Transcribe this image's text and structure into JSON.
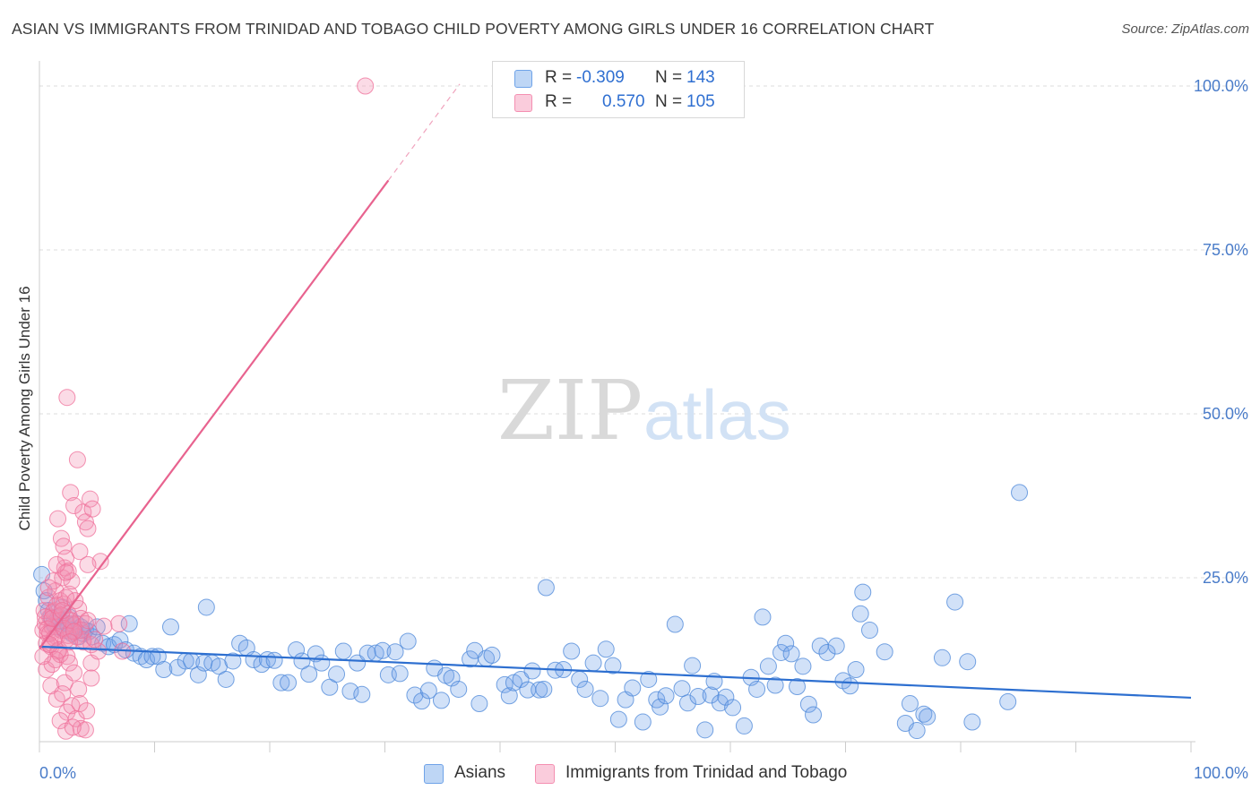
{
  "title": "ASIAN VS IMMIGRANTS FROM TRINIDAD AND TOBAGO CHILD POVERTY AMONG GIRLS UNDER 16 CORRELATION CHART",
  "source": "Source: ZipAtlas.com",
  "watermark": {
    "zip": "ZIP",
    "atlas": "atlas"
  },
  "legend": {
    "r_label": "R =",
    "n_label": "N =",
    "series": [
      {
        "name": "Asians",
        "r": "-0.309",
        "n": "143",
        "color": "#6fa3e8"
      },
      {
        "name": "Immigrants from Trinidad and Tobago",
        "r": "0.570",
        "n": "105",
        "color": "#f48fb1"
      }
    ]
  },
  "chart_data": {
    "type": "scatter",
    "title": "ASIAN VS IMMIGRANTS FROM TRINIDAD AND TOBAGO CHILD POVERTY AMONG GIRLS UNDER 16 CORRELATION CHART",
    "xlabel": "",
    "ylabel": "Child Poverty Among Girls Under 16",
    "xlim": [
      0,
      100
    ],
    "ylim": [
      0,
      100
    ],
    "x_tick_labels": [
      "0.0%",
      "100.0%"
    ],
    "y_ticks": [
      25,
      50,
      75,
      100
    ],
    "y_tick_labels": [
      "25.0%",
      "50.0%",
      "75.0%",
      "100.0%"
    ],
    "grid": true,
    "series": [
      {
        "name": "Asians",
        "color": "#6fa3e8",
        "stroke": "#4a86d8",
        "trend": {
          "x0": 0,
          "y0": 14.5,
          "x1": 100,
          "y1": 6.7
        },
        "points": [
          [
            0.2,
            25.5
          ],
          [
            0.4,
            23
          ],
          [
            0.6,
            21.5
          ],
          [
            0.8,
            20
          ],
          [
            1,
            19
          ],
          [
            1.2,
            18
          ],
          [
            1.4,
            17.5
          ],
          [
            1.6,
            19
          ],
          [
            1.8,
            18.5
          ],
          [
            2,
            20.5
          ],
          [
            2.2,
            17
          ],
          [
            2.4,
            18
          ],
          [
            2.6,
            19
          ],
          [
            2.8,
            16.5
          ],
          [
            3,
            17
          ],
          [
            3.2,
            18
          ],
          [
            3.4,
            16
          ],
          [
            3.6,
            17.5
          ],
          [
            3.8,
            16.5
          ],
          [
            4,
            17
          ],
          [
            4.3,
            16.8
          ],
          [
            4.6,
            16
          ],
          [
            5,
            17.5
          ],
          [
            5.5,
            15
          ],
          [
            6,
            14.5
          ],
          [
            6.5,
            14.8
          ],
          [
            7,
            15.5
          ],
          [
            7.5,
            14
          ],
          [
            7.8,
            18
          ],
          [
            8.2,
            13.5
          ],
          [
            8.8,
            13
          ],
          [
            9.3,
            12.5
          ],
          [
            9.8,
            13
          ],
          [
            10.3,
            13
          ],
          [
            10.8,
            11
          ],
          [
            11.4,
            17.5
          ],
          [
            12,
            11.3
          ],
          [
            12.7,
            12.3
          ],
          [
            13.2,
            12.3
          ],
          [
            13.8,
            10.2
          ],
          [
            14.3,
            12
          ],
          [
            14.5,
            20.5
          ],
          [
            15,
            12
          ],
          [
            15.6,
            11.5
          ],
          [
            16.2,
            9.5
          ],
          [
            16.8,
            12.3
          ],
          [
            17.4,
            15
          ],
          [
            18,
            14.3
          ],
          [
            18.6,
            12.5
          ],
          [
            19.3,
            11.8
          ],
          [
            19.8,
            12.5
          ],
          [
            20.4,
            12.4
          ],
          [
            21,
            9
          ],
          [
            21.6,
            9
          ],
          [
            22.3,
            14
          ],
          [
            22.8,
            12.3
          ],
          [
            23.4,
            10.3
          ],
          [
            24,
            13.4
          ],
          [
            24.5,
            12
          ],
          [
            25.2,
            8.3
          ],
          [
            25.8,
            10.3
          ],
          [
            26.4,
            13.8
          ],
          [
            27,
            7.7
          ],
          [
            27.6,
            12
          ],
          [
            28,
            7.2
          ],
          [
            28.5,
            13.5
          ],
          [
            29.2,
            13.5
          ],
          [
            29.8,
            13.9
          ],
          [
            30.3,
            10.2
          ],
          [
            30.9,
            13.7
          ],
          [
            31.3,
            10.4
          ],
          [
            32,
            15.3
          ],
          [
            32.6,
            7.1
          ],
          [
            33.2,
            6.2
          ],
          [
            33.8,
            7.8
          ],
          [
            34.3,
            11.2
          ],
          [
            34.9,
            6.3
          ],
          [
            35.3,
            10.1
          ],
          [
            35.8,
            9.7
          ],
          [
            36.4,
            8
          ],
          [
            37.4,
            12.6
          ],
          [
            37.8,
            13.9
          ],
          [
            38.2,
            5.8
          ],
          [
            38.8,
            12.7
          ],
          [
            39.3,
            13.2
          ],
          [
            40.4,
            8.7
          ],
          [
            40.8,
            7
          ],
          [
            41.2,
            9
          ],
          [
            41.8,
            9.5
          ],
          [
            42.4,
            7.9
          ],
          [
            42.8,
            10.8
          ],
          [
            43.4,
            7.9
          ],
          [
            43.8,
            8
          ],
          [
            44,
            23.5
          ],
          [
            44.8,
            10.9
          ],
          [
            45.5,
            11
          ],
          [
            46.2,
            13.8
          ],
          [
            46.9,
            9.5
          ],
          [
            47.4,
            8
          ],
          [
            48.1,
            12
          ],
          [
            48.7,
            6.6
          ],
          [
            49.2,
            14.1
          ],
          [
            49.8,
            11.6
          ],
          [
            50.3,
            3.4
          ],
          [
            50.9,
            6.4
          ],
          [
            51.5,
            8.2
          ],
          [
            52.4,
            3
          ],
          [
            52.9,
            9.5
          ],
          [
            53.6,
            6.4
          ],
          [
            53.9,
            5.3
          ],
          [
            54.4,
            7
          ],
          [
            55.2,
            17.9
          ],
          [
            55.8,
            8.1
          ],
          [
            56.3,
            5.9
          ],
          [
            56.7,
            11.6
          ],
          [
            57.2,
            6.9
          ],
          [
            57.8,
            1.8
          ],
          [
            58.3,
            7.1
          ],
          [
            58.6,
            9.2
          ],
          [
            59.1,
            5.9
          ],
          [
            59.6,
            6.8
          ],
          [
            60.2,
            5.2
          ],
          [
            61.2,
            2.4
          ],
          [
            61.8,
            9.8
          ],
          [
            62.3,
            8
          ],
          [
            62.8,
            19
          ],
          [
            63.3,
            11.5
          ],
          [
            63.9,
            8.6
          ],
          [
            64.4,
            13.6
          ],
          [
            64.8,
            15
          ],
          [
            65.3,
            13.4
          ],
          [
            65.8,
            8.4
          ],
          [
            66.3,
            11.5
          ],
          [
            66.8,
            5.7
          ],
          [
            67.2,
            4.1
          ],
          [
            67.8,
            14.6
          ],
          [
            68.4,
            13.6
          ],
          [
            69.2,
            14.6
          ],
          [
            69.8,
            9.3
          ],
          [
            70.4,
            8.5
          ],
          [
            70.9,
            11
          ],
          [
            71.3,
            19.5
          ],
          [
            71.5,
            22.8
          ],
          [
            72.1,
            17
          ],
          [
            73.4,
            13.7
          ],
          [
            75.2,
            2.8
          ],
          [
            75.6,
            5.8
          ],
          [
            76.2,
            1.7
          ],
          [
            76.8,
            4.2
          ],
          [
            77.1,
            3.8
          ],
          [
            78.4,
            12.8
          ],
          [
            79.5,
            21.3
          ],
          [
            80.6,
            12.2
          ],
          [
            81,
            3
          ],
          [
            84.1,
            6.1
          ],
          [
            85.1,
            38
          ]
        ]
      },
      {
        "name": "Immigrants from Trinidad and Tobago",
        "color": "#f48fb1",
        "stroke": "#ef6d98",
        "trend": {
          "x0": 0,
          "y0": 14.2,
          "x1": 30.3,
          "y1": 85.6,
          "dash_x1": 36.5,
          "dash_y1": 100.3
        },
        "points": [
          [
            0.3,
            17
          ],
          [
            0.5,
            18
          ],
          [
            0.7,
            16.5
          ],
          [
            0.9,
            19
          ],
          [
            1.1,
            17.5
          ],
          [
            1.3,
            20
          ],
          [
            1.5,
            16
          ],
          [
            1.7,
            18.5
          ],
          [
            1.9,
            17
          ],
          [
            2.1,
            21
          ],
          [
            2.3,
            15.5
          ],
          [
            2.5,
            19.5
          ],
          [
            2.7,
            16.8
          ],
          [
            2.9,
            18
          ],
          [
            0.4,
            20
          ],
          [
            0.6,
            15
          ],
          [
            0.8,
            22
          ],
          [
            1,
            14.5
          ],
          [
            1.2,
            19.8
          ],
          [
            1.4,
            23
          ],
          [
            1.6,
            13.8
          ],
          [
            1.8,
            21.5
          ],
          [
            2,
            25
          ],
          [
            2.2,
            26.5
          ],
          [
            2.4,
            13
          ],
          [
            2.6,
            22.5
          ],
          [
            2.8,
            24.5
          ],
          [
            3,
            17.8
          ],
          [
            3.2,
            16
          ],
          [
            3.4,
            20.3
          ],
          [
            3.6,
            18.8
          ],
          [
            3.8,
            15.5
          ],
          [
            4,
            18
          ],
          [
            0.5,
            19
          ],
          [
            0.7,
            17.2
          ],
          [
            0.9,
            16.5
          ],
          [
            1.1,
            18.8
          ],
          [
            1.3,
            15.8
          ],
          [
            1.5,
            20.8
          ],
          [
            1.7,
            14
          ],
          [
            1.9,
            19.3
          ],
          [
            2.1,
            17.3
          ],
          [
            2.3,
            22
          ],
          [
            2.5,
            16.2
          ],
          [
            2.7,
            18.5
          ],
          [
            0.6,
            11
          ],
          [
            1,
            8.5
          ],
          [
            1.4,
            12.5
          ],
          [
            1.8,
            13.3
          ],
          [
            2.2,
            9
          ],
          [
            2.6,
            12
          ],
          [
            3,
            10.5
          ],
          [
            3.4,
            8
          ],
          [
            1.5,
            6.5
          ],
          [
            2,
            7.3
          ],
          [
            2.4,
            4.5
          ],
          [
            2.8,
            5.5
          ],
          [
            3.2,
            3.5
          ],
          [
            3.6,
            2
          ],
          [
            4,
            1.8
          ],
          [
            1.8,
            3.2
          ],
          [
            2.3,
            1.6
          ],
          [
            2.9,
            2.2
          ],
          [
            3.5,
            5.8
          ],
          [
            4.1,
            4.7
          ],
          [
            4.5,
            12
          ],
          [
            4.5,
            9.7
          ],
          [
            1.6,
            34
          ],
          [
            1.9,
            31
          ],
          [
            2.1,
            29.8
          ],
          [
            2.3,
            28
          ],
          [
            2.5,
            26
          ],
          [
            2.7,
            38
          ],
          [
            3,
            36
          ],
          [
            3.3,
            43
          ],
          [
            3.5,
            29
          ],
          [
            3.8,
            35
          ],
          [
            4,
            33.5
          ],
          [
            4.2,
            32.5
          ],
          [
            4.4,
            37
          ],
          [
            4.6,
            35.5
          ],
          [
            5.3,
            27.5
          ],
          [
            2.4,
            52.5
          ],
          [
            4.2,
            27
          ],
          [
            6.9,
            18
          ],
          [
            7.2,
            13.8
          ],
          [
            3.8,
            15.2
          ],
          [
            4.5,
            14.8
          ],
          [
            5.1,
            13.8
          ],
          [
            3.1,
            21.5
          ],
          [
            2.3,
            25.8
          ],
          [
            1.2,
            24.5
          ],
          [
            0.8,
            23.5
          ],
          [
            1.5,
            27
          ],
          [
            2,
            20
          ],
          [
            3.6,
            17
          ],
          [
            4.2,
            18.5
          ],
          [
            3,
            16.8
          ],
          [
            2.6,
            15.2
          ],
          [
            5.6,
            17.6
          ],
          [
            4.8,
            15.6
          ],
          [
            1.1,
            11.8
          ],
          [
            0.3,
            13
          ],
          [
            28.3,
            100
          ],
          [
            0.9,
            14.8
          ]
        ]
      }
    ]
  }
}
